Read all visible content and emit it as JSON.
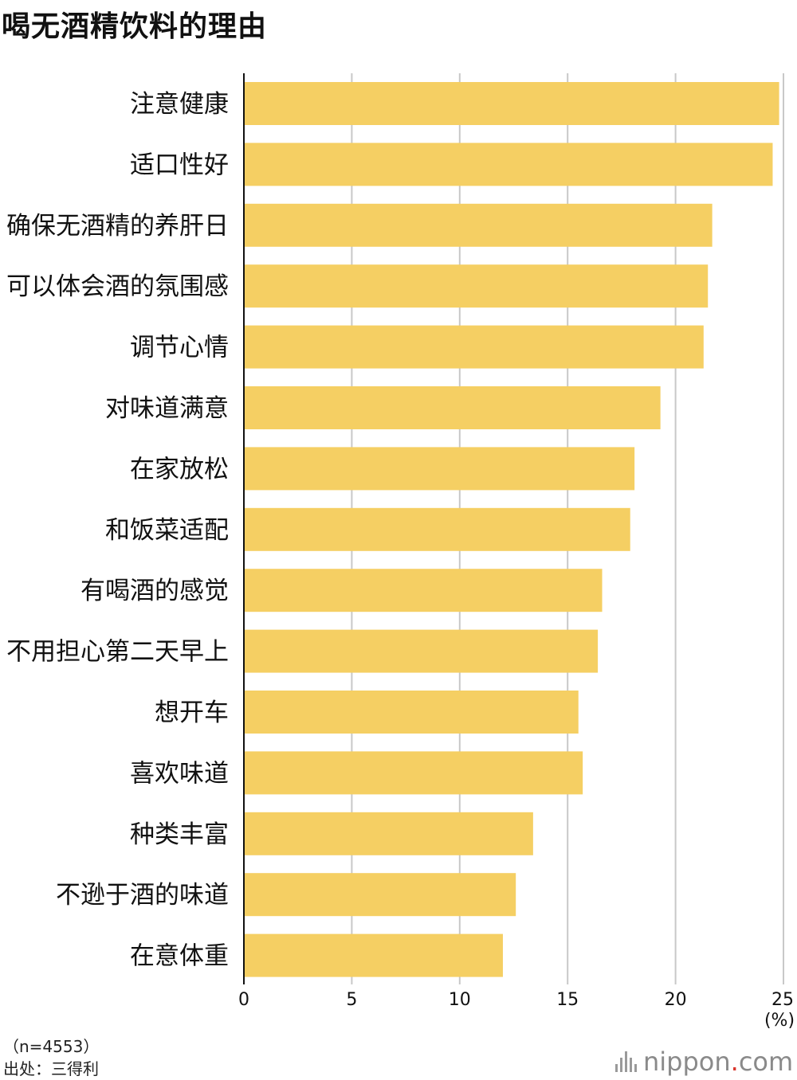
{
  "chart_data": {
    "type": "bar",
    "orientation": "horizontal",
    "title": "喝无酒精饮料的理由",
    "categories": [
      "注意健康",
      "适口性好",
      "确保无酒精的养肝日",
      "可以体会酒的氛围感",
      "调节心情",
      "对味道满意",
      "在家放松",
      "和饭菜适配",
      "有喝酒的感觉",
      "不用担心第二天早上",
      "想开车",
      "喜欢味道",
      "种类丰富",
      "不逊于酒的味道",
      "在意体重"
    ],
    "values": [
      24.8,
      24.5,
      21.7,
      21.5,
      21.3,
      19.3,
      18.1,
      17.9,
      16.6,
      16.4,
      15.5,
      15.7,
      13.4,
      12.6,
      12.0
    ],
    "xlim": [
      0,
      25
    ],
    "xticks": [
      0,
      5,
      10,
      15,
      20,
      25
    ],
    "unit": "(%)",
    "grid": true,
    "bar_color": "#f5cf63",
    "grid_color": "#c8c8c8"
  },
  "notes": {
    "sample": "（n=4553）",
    "source": "出处：三得利"
  },
  "brand": {
    "name": "nippon",
    "dot": ".",
    "suffix": "com",
    "icon": "nippon-logo-icon"
  }
}
